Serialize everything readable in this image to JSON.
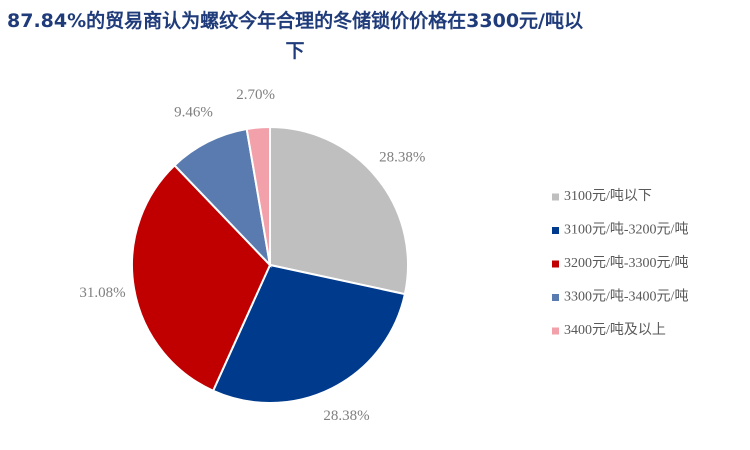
{
  "chart_data": {
    "type": "pie",
    "title": "87.84%的贸易商认为螺纹今年合理的冬储锁价价格在3300元/吨以下",
    "categories": [
      "3100元/吨以下",
      "3100元/吨-3200元/吨",
      "3200元/吨-3300元/吨",
      "3300元/吨-3400元/吨",
      "3400元/吨及以上"
    ],
    "values": [
      28.38,
      28.38,
      31.08,
      9.46,
      2.7
    ],
    "value_labels": [
      "28.38%",
      "28.38%",
      "31.08%",
      "9.46%",
      "2.70%"
    ],
    "colors": [
      "#bfbfbf",
      "#003a8c",
      "#c00000",
      "#5a7bb0",
      "#f2a1aa"
    ],
    "legend": "right"
  }
}
